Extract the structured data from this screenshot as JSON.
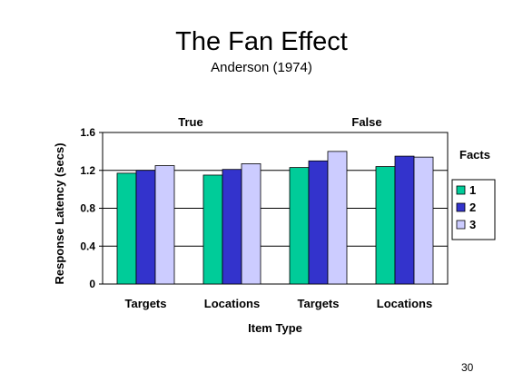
{
  "slide": {
    "title": "The Fan Effect",
    "subtitle": "Anderson (1974)",
    "page_number": "30"
  },
  "chart_data": {
    "type": "bar",
    "group_labels": [
      "True",
      "False"
    ],
    "categories": [
      "Targets",
      "Locations",
      "Targets",
      "Locations"
    ],
    "series": [
      {
        "name": "1",
        "values": [
          1.17,
          1.15,
          1.23,
          1.24
        ],
        "color": "#00cc99"
      },
      {
        "name": "2",
        "values": [
          1.2,
          1.21,
          1.3,
          1.35
        ],
        "color": "#3333cc"
      },
      {
        "name": "3",
        "values": [
          1.25,
          1.27,
          1.4,
          1.34
        ],
        "color": "#ccccff"
      }
    ],
    "xlabel": "Item Type",
    "ylabel": "Response Latency (secs)",
    "ylim": [
      0,
      1.6
    ],
    "yticks": [
      0,
      0.4,
      0.8,
      1.2,
      1.6
    ],
    "ytick_labels": [
      "0",
      "0.4",
      "0.8",
      "1.2",
      "1.6"
    ],
    "grid": true,
    "legend_title": "Facts",
    "legend_position": "right"
  }
}
